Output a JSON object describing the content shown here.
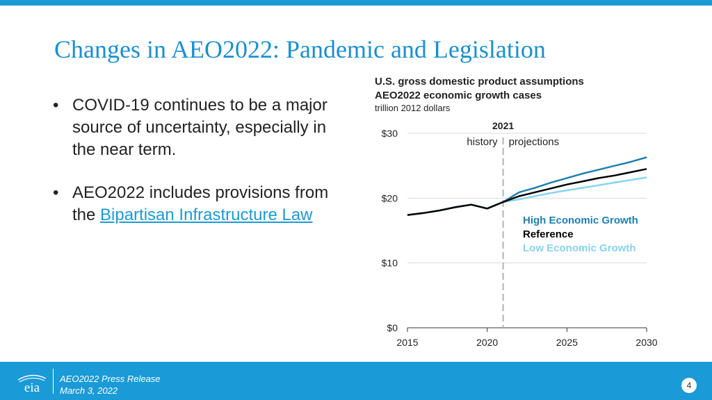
{
  "slide": {
    "title": "Changes in AEO2022: Pandemic and Legislation",
    "bullets": [
      {
        "text": "COVID-19 continues to be a major source of uncertainty, especially in the near term."
      },
      {
        "text_before": "AEO2022 includes provisions from the ",
        "link_text": "Bipartisan Infrastructure Law"
      }
    ]
  },
  "chart_data": {
    "type": "line",
    "title_lines": [
      "U.S. gross domestic product assumptions",
      "AEO2022 economic growth cases"
    ],
    "unit": "trillion 2012 dollars",
    "xlim": [
      2015,
      2030
    ],
    "ylim": [
      0,
      30
    ],
    "x_ticks": [
      2015,
      2020,
      2025,
      2030
    ],
    "x_tick_labels": [
      "2015",
      "2020",
      "2025",
      "2030"
    ],
    "y_ticks": [
      0,
      10,
      20,
      30
    ],
    "y_tick_labels": [
      "$0",
      "$10",
      "$20",
      "$30"
    ],
    "grid": true,
    "divider": {
      "x": 2021,
      "label": "2021",
      "left_label": "history",
      "right_label": "projections"
    },
    "series": [
      {
        "name": "High Economic Growth",
        "color": "#1f7fae",
        "x": [
          2015,
          2016,
          2017,
          2018,
          2019,
          2020,
          2021,
          2022,
          2023,
          2024,
          2025,
          2026,
          2027,
          2028,
          2029,
          2030
        ],
        "values": [
          17.4,
          17.7,
          18.1,
          18.6,
          19.0,
          18.4,
          19.4,
          20.9,
          21.6,
          22.4,
          23.1,
          23.8,
          24.4,
          25.0,
          25.6,
          26.3
        ]
      },
      {
        "name": "Reference",
        "color": "#000000",
        "x": [
          2015,
          2016,
          2017,
          2018,
          2019,
          2020,
          2021,
          2022,
          2023,
          2024,
          2025,
          2026,
          2027,
          2028,
          2029,
          2030
        ],
        "values": [
          17.4,
          17.7,
          18.1,
          18.6,
          19.0,
          18.4,
          19.4,
          20.3,
          20.9,
          21.5,
          22.1,
          22.6,
          23.1,
          23.5,
          24.0,
          24.5
        ]
      },
      {
        "name": "Low Economic Growth",
        "color": "#86d3f0",
        "x": [
          2021,
          2022,
          2023,
          2024,
          2025,
          2026,
          2027,
          2028,
          2029,
          2030
        ],
        "values": [
          19.4,
          19.8,
          20.3,
          20.8,
          21.2,
          21.6,
          22.0,
          22.4,
          22.8,
          23.2
        ]
      }
    ]
  },
  "footer": {
    "line1": "AEO2022 Press Release",
    "line2": "March 3, 2022",
    "page_number": "4",
    "logo_text": "eia"
  }
}
